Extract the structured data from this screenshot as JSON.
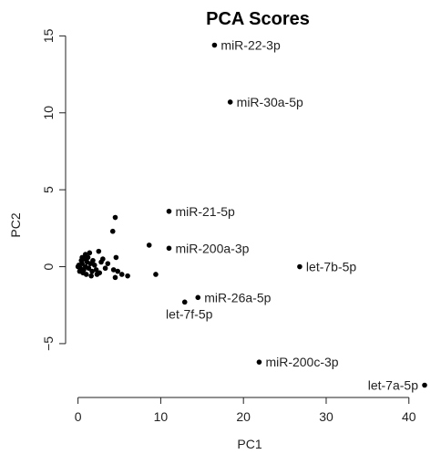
{
  "chart_data": {
    "type": "scatter",
    "title": "PCA Scores",
    "xlabel": "PC1",
    "ylabel": "PC2",
    "xlim": [
      -1.5,
      43
    ],
    "ylim": [
      -8.5,
      15.2
    ],
    "xticks": [
      0,
      10,
      20,
      30,
      40
    ],
    "yticks": [
      -5,
      0,
      5,
      10,
      15
    ],
    "xtick_labels": [
      "0",
      "10",
      "20",
      "30",
      "40"
    ],
    "ytick_labels": [
      "−5",
      "0",
      "5",
      "10",
      "15"
    ],
    "grid": false,
    "legend": "none",
    "labeled_points": [
      {
        "label": "miR-22-3p",
        "x": 16.5,
        "y": 14.4
      },
      {
        "label": "miR-30a-5p",
        "x": 18.4,
        "y": 10.7
      },
      {
        "label": "miR-21-5p",
        "x": 11.0,
        "y": 3.6
      },
      {
        "label": "miR-200a-3p",
        "x": 11.0,
        "y": 1.2
      },
      {
        "label": "let-7b-5p",
        "x": 26.8,
        "y": 0.0
      },
      {
        "label": "miR-26a-5p",
        "x": 14.5,
        "y": -2.0
      },
      {
        "label": "let-7f-5p",
        "x": 12.9,
        "y": -2.3
      },
      {
        "label": "miR-200c-3p",
        "x": 21.9,
        "y": -6.2
      },
      {
        "label": "let-7a-5p",
        "x": 41.9,
        "y": -7.7
      }
    ],
    "points": [
      {
        "x": 0.1,
        "y": 0.1
      },
      {
        "x": 0.3,
        "y": -0.1
      },
      {
        "x": 0.5,
        "y": 0.2
      },
      {
        "x": 0.7,
        "y": -0.2
      },
      {
        "x": 0.9,
        "y": 0.0
      },
      {
        "x": 1.1,
        "y": 0.3
      },
      {
        "x": 0.4,
        "y": 0.4
      },
      {
        "x": 0.6,
        "y": -0.4
      },
      {
        "x": 0.2,
        "y": -0.3
      },
      {
        "x": 0.8,
        "y": 0.5
      },
      {
        "x": 1.3,
        "y": -0.1
      },
      {
        "x": 1.5,
        "y": 0.2
      },
      {
        "x": 1.0,
        "y": -0.5
      },
      {
        "x": 1.2,
        "y": 0.6
      },
      {
        "x": 0.0,
        "y": 0.0
      },
      {
        "x": 1.7,
        "y": -0.3
      },
      {
        "x": 2.0,
        "y": 0.1
      },
      {
        "x": 1.8,
        "y": 0.4
      },
      {
        "x": 2.2,
        "y": -0.2
      },
      {
        "x": 0.9,
        "y": 0.8
      },
      {
        "x": 1.4,
        "y": 0.9
      },
      {
        "x": 2.5,
        "y": 1.0
      },
      {
        "x": 2.3,
        "y": -0.5
      },
      {
        "x": 2.8,
        "y": 0.3
      },
      {
        "x": 3.0,
        "y": 0.5
      },
      {
        "x": 3.3,
        "y": -0.1
      },
      {
        "x": 2.6,
        "y": -0.4
      },
      {
        "x": 4.2,
        "y": 2.3
      },
      {
        "x": 4.5,
        "y": 3.2
      },
      {
        "x": 4.6,
        "y": 0.6
      },
      {
        "x": 4.3,
        "y": -0.2
      },
      {
        "x": 4.8,
        "y": -0.3
      },
      {
        "x": 4.5,
        "y": -0.7
      },
      {
        "x": 5.3,
        "y": -0.5
      },
      {
        "x": 6.0,
        "y": -0.6
      },
      {
        "x": 3.6,
        "y": 0.2
      },
      {
        "x": 1.6,
        "y": -0.6
      },
      {
        "x": 0.5,
        "y": 0.6
      },
      {
        "x": 8.6,
        "y": 1.4
      },
      {
        "x": 9.4,
        "y": -0.5
      }
    ]
  }
}
